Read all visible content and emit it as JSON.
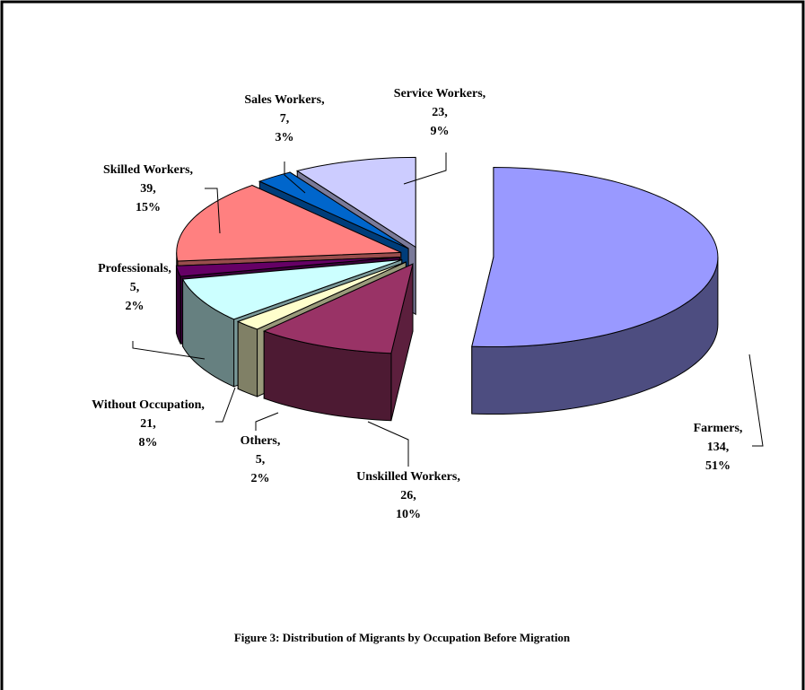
{
  "chart_data": {
    "type": "pie3d",
    "title": "Figure 3: Distribution of Migrants by Occupation Before Migration",
    "categories": [
      "Farmers,",
      "Unskilled Workers,",
      "Others,",
      "Without Occupation,",
      "Professionals,",
      "Skilled Workers,",
      "Sales Workers,",
      "Service Workers,"
    ],
    "values": [
      134,
      26,
      5,
      21,
      5,
      39,
      7,
      23
    ],
    "value_labels": [
      "134,",
      "26,",
      "5,",
      "21,",
      "5,",
      "39,",
      "7,",
      "23,"
    ],
    "percents": [
      51,
      10,
      2,
      8,
      2,
      15,
      3,
      9
    ],
    "percent_labels": [
      "51%",
      "10%",
      "2%",
      "8%",
      "2%",
      "15%",
      "3%",
      "9%"
    ],
    "colors": [
      "#9999ff",
      "#993366",
      "#ffffcc",
      "#ccffff",
      "#660066",
      "#ff8080",
      "#0066cc",
      "#ccccff"
    ]
  }
}
